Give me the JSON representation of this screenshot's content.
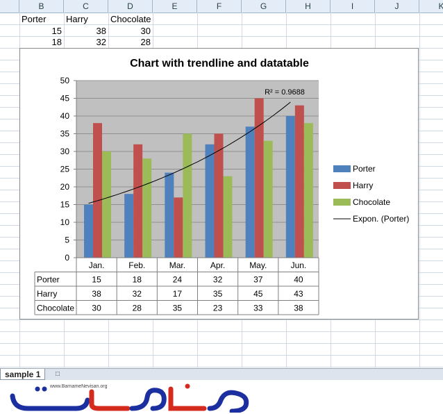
{
  "sheet": {
    "columns": [
      "B",
      "C",
      "D",
      "E",
      "F",
      "G",
      "H",
      "I",
      "J",
      "K"
    ],
    "header_row": [
      "Porter",
      "Harry",
      "Chocolate"
    ],
    "rows": [
      [
        15,
        38,
        30
      ],
      [
        18,
        32,
        28
      ]
    ],
    "tab_label": "sample 1"
  },
  "chart_data": {
    "type": "bar",
    "title": "Chart with trendline and datatable",
    "categories": [
      "Jan.",
      "Feb.",
      "Mar.",
      "Apr.",
      "May.",
      "Jun."
    ],
    "series": [
      {
        "name": "Porter",
        "values": [
          15,
          18,
          24,
          32,
          37,
          40
        ],
        "color": "#4f81bd"
      },
      {
        "name": "Harry",
        "values": [
          38,
          32,
          17,
          35,
          45,
          43
        ],
        "color": "#c0504d"
      },
      {
        "name": "Chocolate",
        "values": [
          30,
          28,
          35,
          23,
          33,
          38
        ],
        "color": "#9bbb59"
      }
    ],
    "trendline": {
      "name": "Expon. (Porter)",
      "type": "exponential",
      "series": "Porter",
      "r2_label": "R² = 0.9688"
    },
    "ylim": [
      0,
      50
    ],
    "yticks": [
      0,
      5,
      10,
      15,
      20,
      25,
      30,
      35,
      40,
      45,
      50
    ],
    "plot_background": "#c0c0c0",
    "grid": true,
    "legend_position": "right",
    "data_table": true
  },
  "logo": {
    "url_text": "www.BarnameNevisan.org"
  }
}
